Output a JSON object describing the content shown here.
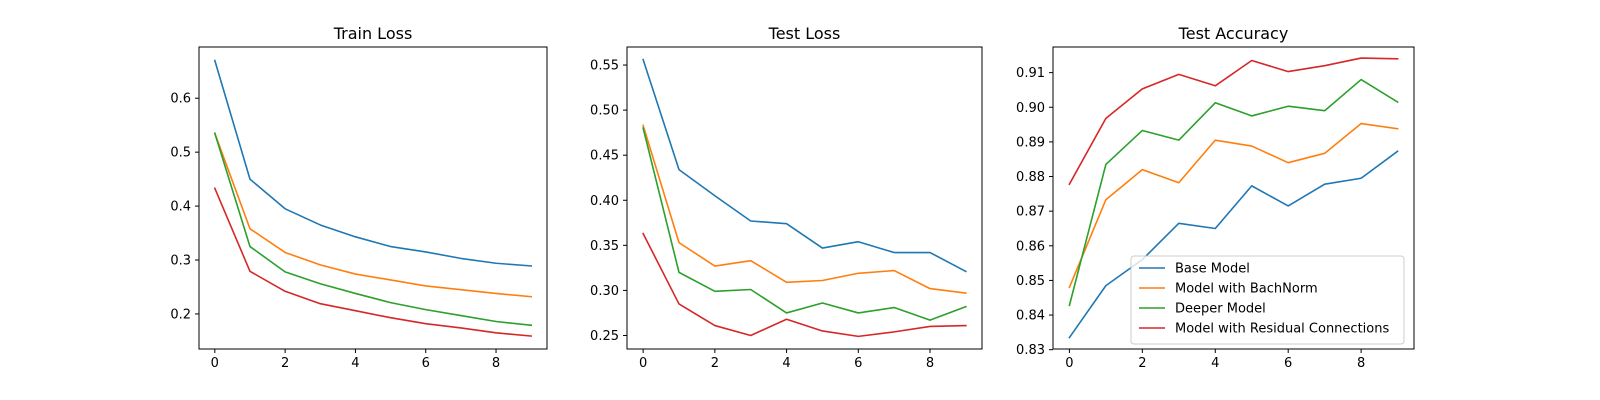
{
  "chart_data": [
    {
      "type": "line",
      "title": "Train Loss",
      "x": [
        0,
        1,
        2,
        3,
        4,
        5,
        6,
        7,
        8,
        9
      ],
      "xlim": [
        -0.45,
        9.45
      ],
      "ylim": [
        0.135,
        0.695
      ],
      "xticks": [
        0,
        2,
        4,
        6,
        8
      ],
      "yticks": [
        0.2,
        0.3,
        0.4,
        0.5,
        0.6
      ],
      "ytick_labels": [
        "0.2",
        "0.3",
        "0.4",
        "0.5",
        "0.6"
      ],
      "series": [
        {
          "name": "Base Model",
          "color": "#1f77b4",
          "values": [
            0.67,
            0.45,
            0.395,
            0.365,
            0.343,
            0.325,
            0.315,
            0.303,
            0.294,
            0.289
          ]
        },
        {
          "name": "Model with BachNorm",
          "color": "#ff7f0e",
          "values": [
            0.535,
            0.358,
            0.314,
            0.291,
            0.274,
            0.263,
            0.252,
            0.245,
            0.238,
            0.232
          ]
        },
        {
          "name": "Deeper Model",
          "color": "#2ca02c",
          "values": [
            0.535,
            0.325,
            0.278,
            0.256,
            0.238,
            0.221,
            0.208,
            0.197,
            0.186,
            0.179
          ]
        },
        {
          "name": "Model with Residual Connections",
          "color": "#d62728",
          "values": [
            0.433,
            0.279,
            0.242,
            0.219,
            0.206,
            0.193,
            0.182,
            0.174,
            0.165,
            0.159
          ]
        }
      ]
    },
    {
      "type": "line",
      "title": "Test Loss",
      "x": [
        0,
        1,
        2,
        3,
        4,
        5,
        6,
        7,
        8,
        9
      ],
      "xlim": [
        -0.45,
        9.45
      ],
      "ylim": [
        0.235,
        0.57
      ],
      "xticks": [
        0,
        2,
        4,
        6,
        8
      ],
      "yticks": [
        0.25,
        0.3,
        0.35,
        0.4,
        0.45,
        0.5,
        0.55
      ],
      "ytick_labels": [
        "0.25",
        "0.30",
        "0.35",
        "0.40",
        "0.45",
        "0.50",
        "0.55"
      ],
      "series": [
        {
          "name": "Base Model",
          "color": "#1f77b4",
          "values": [
            0.556,
            0.434,
            0.405,
            0.377,
            0.374,
            0.347,
            0.354,
            0.342,
            0.342,
            0.321
          ]
        },
        {
          "name": "Model with BachNorm",
          "color": "#ff7f0e",
          "values": [
            0.483,
            0.353,
            0.327,
            0.333,
            0.309,
            0.311,
            0.319,
            0.322,
            0.302,
            0.297
          ]
        },
        {
          "name": "Deeper Model",
          "color": "#2ca02c",
          "values": [
            0.48,
            0.32,
            0.299,
            0.301,
            0.275,
            0.286,
            0.275,
            0.281,
            0.267,
            0.282
          ]
        },
        {
          "name": "Model with Residual Connections",
          "color": "#d62728",
          "values": [
            0.363,
            0.285,
            0.261,
            0.25,
            0.268,
            0.255,
            0.249,
            0.254,
            0.26,
            0.261
          ]
        }
      ]
    },
    {
      "type": "line",
      "title": "Test Accuracy",
      "x": [
        0,
        1,
        2,
        3,
        4,
        5,
        6,
        7,
        8,
        9
      ],
      "xlim": [
        -0.45,
        9.45
      ],
      "ylim": [
        0.8302,
        0.9174
      ],
      "xticks": [
        0,
        2,
        4,
        6,
        8
      ],
      "yticks": [
        0.83,
        0.84,
        0.85,
        0.86,
        0.87,
        0.88,
        0.89,
        0.9,
        0.91
      ],
      "ytick_labels": [
        "0.83",
        "0.84",
        "0.85",
        "0.86",
        "0.87",
        "0.88",
        "0.89",
        "0.90",
        "0.91"
      ],
      "legend": "lower-right",
      "series": [
        {
          "name": "Base Model",
          "color": "#1f77b4",
          "values": [
            0.8335,
            0.8485,
            0.856,
            0.8665,
            0.865,
            0.8773,
            0.8715,
            0.8778,
            0.8795,
            0.8873
          ]
        },
        {
          "name": "Model with BachNorm",
          "color": "#ff7f0e",
          "values": [
            0.848,
            0.8733,
            0.882,
            0.8782,
            0.8905,
            0.8888,
            0.884,
            0.8867,
            0.8953,
            0.8938
          ]
        },
        {
          "name": "Deeper Model",
          "color": "#2ca02c",
          "values": [
            0.8428,
            0.8835,
            0.8933,
            0.8905,
            0.9013,
            0.8975,
            0.9003,
            0.899,
            0.908,
            0.9015
          ]
        },
        {
          "name": "Model with Residual Connections",
          "color": "#d62728",
          "values": [
            0.8778,
            0.8968,
            0.9053,
            0.9095,
            0.9062,
            0.9135,
            0.9103,
            0.912,
            0.9142,
            0.914
          ]
        }
      ]
    }
  ]
}
